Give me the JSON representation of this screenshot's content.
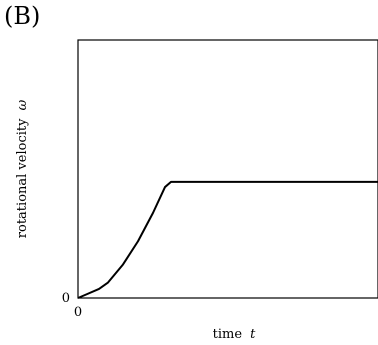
{
  "panel_label": "(B)",
  "chart_data": {
    "type": "line",
    "xlabel": "time",
    "xlabel_symbol": "t",
    "ylabel": "rotational velocity",
    "ylabel_symbol": "ω",
    "x_tick_labels": [
      "0"
    ],
    "y_tick_labels": [
      "0"
    ],
    "xlim": [
      0,
      1
    ],
    "ylim": [
      0,
      1
    ],
    "grid": false,
    "legend": "none",
    "series": [
      {
        "color": "#000000",
        "x": [
          0,
          0.03,
          0.07,
          0.1,
          0.15,
          0.2,
          0.25,
          0.29,
          0.31,
          0.5,
          0.75,
          1.0
        ],
        "y": [
          0,
          0.015,
          0.035,
          0.06,
          0.13,
          0.22,
          0.33,
          0.43,
          0.45,
          0.45,
          0.45,
          0.45
        ]
      }
    ]
  }
}
